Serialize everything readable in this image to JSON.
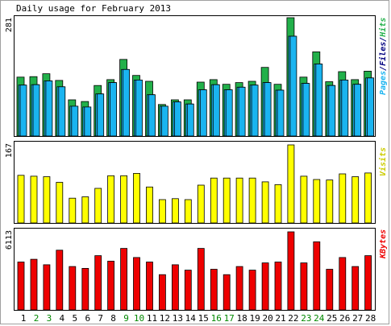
{
  "title": "Daily usage for February 2013",
  "colors": {
    "hits": "#22b04a",
    "files": "#1ab4f0",
    "pages": "#1ab4f0",
    "visits": "#ffff00",
    "kbytes": "#ee0000",
    "weekday_label": "#000000",
    "weekend_label": "#008800",
    "side_hits": "#22b04a",
    "side_pages": "#1ab4f0",
    "side_files": "#000080",
    "side_visits": "#cccc00",
    "side_kbytes": "#ee0000"
  },
  "side_labels": {
    "pages": "Pages",
    "files": "Files",
    "hits": "Hits",
    "sep": "/",
    "visits": "Visits",
    "kbytes": "KBytes"
  },
  "chart_data": [
    {
      "type": "bar",
      "panel": "hits-files-pages",
      "title": "Daily usage for February 2013",
      "categories": [
        "1",
        "2",
        "3",
        "4",
        "5",
        "6",
        "7",
        "8",
        "9",
        "10",
        "11",
        "12",
        "13",
        "14",
        "15",
        "16",
        "17",
        "18",
        "19",
        "20",
        "21",
        "22",
        "23",
        "24",
        "25",
        "26",
        "27",
        "28"
      ],
      "weekend_days": [
        "2",
        "3",
        "9",
        "10",
        "16",
        "17",
        "23",
        "24"
      ],
      "ymax_label": "281",
      "ylim": [
        0,
        281
      ],
      "series": [
        {
          "name": "Hits",
          "values": [
            140,
            141,
            148,
            132,
            86,
            82,
            120,
            134,
            182,
            144,
            130,
            75,
            86,
            86,
            128,
            134,
            123,
            127,
            130,
            163,
            123,
            281,
            140,
            200,
            129,
            153,
            134,
            154
          ]
        },
        {
          "name": "Files",
          "values": [
            121,
            122,
            131,
            117,
            71,
            69,
            100,
            127,
            158,
            133,
            98,
            71,
            81,
            76,
            110,
            122,
            110,
            116,
            121,
            127,
            109,
            237,
            125,
            171,
            120,
            133,
            123,
            138
          ]
        },
        {
          "name": "Pages",
          "values": [
            121,
            122,
            131,
            117,
            71,
            69,
            100,
            127,
            158,
            133,
            98,
            71,
            81,
            76,
            110,
            122,
            110,
            116,
            121,
            127,
            109,
            237,
            125,
            171,
            120,
            133,
            123,
            138
          ]
        }
      ]
    },
    {
      "type": "bar",
      "panel": "visits",
      "categories": [
        "1",
        "2",
        "3",
        "4",
        "5",
        "6",
        "7",
        "8",
        "9",
        "10",
        "11",
        "12",
        "13",
        "14",
        "15",
        "16",
        "17",
        "18",
        "19",
        "20",
        "21",
        "22",
        "23",
        "24",
        "25",
        "26",
        "27",
        "28"
      ],
      "ymax_label": "167",
      "ylim": [
        0,
        167
      ],
      "series": [
        {
          "name": "Visits",
          "values": [
            102,
            100,
            99,
            87,
            53,
            56,
            74,
            101,
            101,
            106,
            77,
            50,
            52,
            50,
            81,
            96,
            96,
            96,
            96,
            88,
            82,
            167,
            100,
            93,
            92,
            105,
            99,
            107
          ]
        }
      ]
    },
    {
      "type": "bar",
      "panel": "kbytes",
      "categories": [
        "1",
        "2",
        "3",
        "4",
        "5",
        "6",
        "7",
        "8",
        "9",
        "10",
        "11",
        "12",
        "13",
        "14",
        "15",
        "16",
        "17",
        "18",
        "19",
        "20",
        "21",
        "22",
        "23",
        "24",
        "25",
        "26",
        "27",
        "28"
      ],
      "ymax_label": "6113",
      "ylim": [
        0,
        6113
      ],
      "series": [
        {
          "name": "KBytes",
          "values": [
            3750,
            3962,
            3538,
            4674,
            3396,
            3255,
            4245,
            3821,
            4816,
            4103,
            3750,
            2759,
            3538,
            3113,
            4816,
            3184,
            2759,
            3396,
            3113,
            3680,
            3750,
            6113,
            3680,
            5330,
            3184,
            4103,
            3397,
            4245
          ]
        }
      ]
    }
  ]
}
